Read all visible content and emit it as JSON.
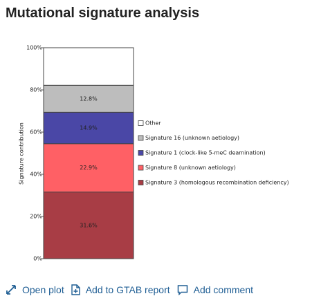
{
  "header": {
    "title": "Mutational signature analysis"
  },
  "chart_data": {
    "type": "stacked_bar",
    "y_label": "Signature contribution",
    "categories": [
      null
    ],
    "series": [
      {
        "name": "Signature 3 (homologous recombination deficiency)",
        "color": "#a83d45",
        "values": [
          31.6
        ],
        "value_labels": [
          "31.6%"
        ]
      },
      {
        "name": "Signature 8 (unknown aetiology)",
        "color": "#ff6065",
        "values": [
          22.9
        ],
        "value_labels": [
          "22.9%"
        ]
      },
      {
        "name": "Signature 1 (clock-like 5-meC deamination)",
        "color": "#4a47a6",
        "values": [
          14.9
        ],
        "value_labels": [
          "14.9%"
        ]
      },
      {
        "name": "Signature 16 (unknown aetiology)",
        "color": "#bdbdbd",
        "values": [
          12.8
        ],
        "value_labels": [
          "12.8%"
        ]
      },
      {
        "name": "Other",
        "color": "#ffffff",
        "values": [
          17.8
        ]
      }
    ],
    "ylim": [
      0,
      100
    ],
    "yticks": [
      {
        "value": 0,
        "label": "0%"
      },
      {
        "value": 20,
        "label": "20%"
      },
      {
        "value": 40,
        "label": "40%"
      },
      {
        "value": 60,
        "label": "60%"
      },
      {
        "value": 80,
        "label": "80%"
      },
      {
        "value": 100,
        "label": "100%"
      }
    ],
    "legend": "right"
  },
  "actions": [
    "Open plot",
    "Add to GTAB report",
    "Add comment"
  ]
}
